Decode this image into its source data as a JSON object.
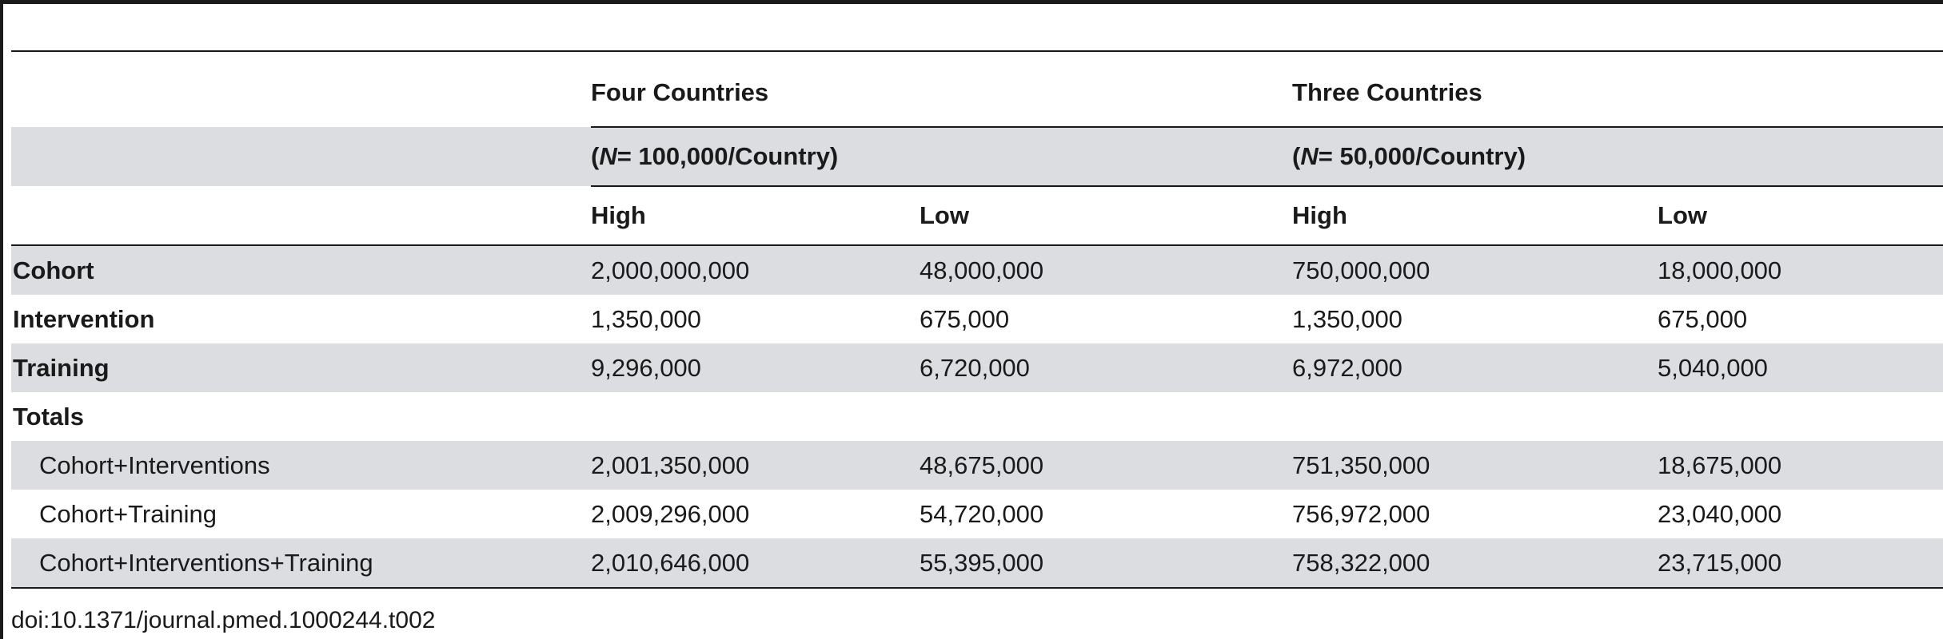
{
  "table": {
    "group_headers": [
      {
        "title": "Four Countries",
        "subtitle_prefix": "(",
        "subtitle_n": "N",
        "subtitle_rest": "= 100,000/Country)"
      },
      {
        "title": "Three Countries",
        "subtitle_prefix": "(",
        "subtitle_n": "N",
        "subtitle_rest": "= 50,000/Country)"
      }
    ],
    "sub_headers": [
      "High",
      "Low",
      "High",
      "Low"
    ],
    "rows": [
      {
        "label": "Cohort",
        "values": [
          "2,000,000,000",
          "48,000,000",
          "750,000,000",
          "18,000,000"
        ]
      },
      {
        "label": "Intervention",
        "values": [
          "1,350,000",
          "675,000",
          "1,350,000",
          "675,000"
        ]
      },
      {
        "label": "Training",
        "values": [
          "9,296,000",
          "6,720,000",
          "6,972,000",
          "5,040,000"
        ]
      },
      {
        "label": "Totals",
        "values": [
          "",
          "",
          "",
          ""
        ]
      },
      {
        "label": "Cohort+Interventions",
        "values": [
          "2,001,350,000",
          "48,675,000",
          "751,350,000",
          "18,675,000"
        ]
      },
      {
        "label": "Cohort+Training",
        "values": [
          "2,009,296,000",
          "54,720,000",
          "756,972,000",
          "23,040,000"
        ]
      },
      {
        "label": "Cohort+Interventions+Training",
        "values": [
          "2,010,646,000",
          "55,395,000",
          "758,322,000",
          "23,715,000"
        ]
      }
    ]
  },
  "footnote": "doi:10.1371/journal.pmed.1000244.t002"
}
